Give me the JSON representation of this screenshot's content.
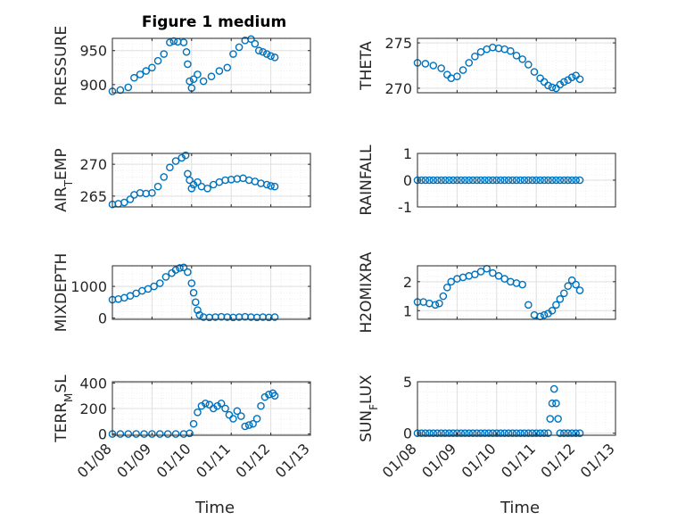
{
  "figure": {
    "title": "Figure 1 medium"
  },
  "colors": {
    "marker": "#0072BD",
    "grid_major": "#dfdfdf",
    "grid_minor": "#ececec",
    "axis": "#262626"
  },
  "x_axis": {
    "label": "Time",
    "ticks": [
      0,
      1,
      2,
      3,
      4,
      5
    ],
    "tick_labels": [
      "01/08",
      "01/09",
      "01/10",
      "01/11",
      "01/12",
      "01/13"
    ],
    "xlim": [
      0,
      5
    ]
  },
  "chart_data": [
    {
      "type": "scatter",
      "ylabel": "PRESSURE",
      "ylim": [
        888,
        968
      ],
      "yticks": [
        900,
        950
      ],
      "ytick_labels": [
        "900",
        "950"
      ],
      "grid": true,
      "x": [
        0,
        0.2,
        0.4,
        0.55,
        0.7,
        0.85,
        1.0,
        1.15,
        1.3,
        1.45,
        1.55,
        1.65,
        1.8,
        1.87,
        1.9,
        1.95,
        2.0,
        2.05,
        2.15,
        2.3,
        2.5,
        2.7,
        2.9,
        3.05,
        3.2,
        3.35,
        3.5,
        3.6,
        3.7,
        3.8,
        3.9,
        4.0,
        4.1
      ],
      "y": [
        890,
        892,
        896,
        910,
        915,
        920,
        925,
        935,
        945,
        962,
        964,
        963,
        962,
        948,
        930,
        905,
        895,
        908,
        915,
        905,
        912,
        920,
        925,
        945,
        955,
        965,
        967,
        960,
        950,
        948,
        945,
        942,
        940
      ]
    },
    {
      "type": "scatter",
      "ylabel": "THETA",
      "ylim": [
        269.5,
        275.5
      ],
      "yticks": [
        270,
        275
      ],
      "ytick_labels": [
        "270",
        "275"
      ],
      "grid": true,
      "x": [
        0,
        0.2,
        0.4,
        0.6,
        0.75,
        0.85,
        1.0,
        1.15,
        1.3,
        1.45,
        1.6,
        1.75,
        1.9,
        2.05,
        2.2,
        2.35,
        2.5,
        2.65,
        2.8,
        2.95,
        3.1,
        3.2,
        3.3,
        3.4,
        3.5,
        3.6,
        3.7,
        3.8,
        3.9,
        4.0,
        4.1
      ],
      "y": [
        272.8,
        272.7,
        272.5,
        272.2,
        271.5,
        271.1,
        271.3,
        272.0,
        272.8,
        273.5,
        274.0,
        274.3,
        274.5,
        274.4,
        274.3,
        274.1,
        273.6,
        273.2,
        272.6,
        271.8,
        271.1,
        270.7,
        270.3,
        270.1,
        270.0,
        270.4,
        270.7,
        270.9,
        271.2,
        271.4,
        271.0
      ]
    },
    {
      "type": "scatter",
      "ylabel": "AIR_TEMP",
      "ylabel_main": "AIR",
      "ylabel_sub": "T",
      "ylabel_rest": "EMP",
      "ylim": [
        263.3,
        271.7
      ],
      "yticks": [
        265,
        270
      ],
      "ytick_labels": [
        "265",
        "270"
      ],
      "grid": true,
      "x": [
        0,
        0.15,
        0.3,
        0.45,
        0.55,
        0.7,
        0.85,
        1.0,
        1.15,
        1.3,
        1.45,
        1.6,
        1.75,
        1.85,
        1.9,
        1.95,
        2.0,
        2.05,
        2.15,
        2.25,
        2.4,
        2.55,
        2.7,
        2.85,
        3.0,
        3.15,
        3.3,
        3.45,
        3.6,
        3.75,
        3.9,
        4.0,
        4.1
      ],
      "y": [
        263.7,
        263.8,
        264.0,
        264.5,
        265.2,
        265.5,
        265.4,
        265.5,
        266.5,
        268.0,
        269.5,
        270.5,
        271.0,
        271.4,
        268.5,
        267.5,
        266.2,
        266.8,
        267.2,
        266.5,
        266.2,
        266.8,
        267.2,
        267.5,
        267.6,
        267.7,
        267.8,
        267.5,
        267.3,
        267.0,
        266.8,
        266.6,
        266.5
      ]
    },
    {
      "type": "scatter",
      "ylabel": "RAINFALL",
      "ylim": [
        -1,
        1
      ],
      "yticks": [
        -1,
        0,
        1
      ],
      "ytick_labels": [
        "-1",
        "0",
        "1"
      ],
      "grid": true,
      "x": [
        0,
        0.1,
        0.2,
        0.3,
        0.4,
        0.5,
        0.6,
        0.7,
        0.8,
        0.9,
        1.0,
        1.1,
        1.2,
        1.3,
        1.4,
        1.5,
        1.6,
        1.7,
        1.8,
        1.9,
        2.0,
        2.1,
        2.2,
        2.3,
        2.4,
        2.5,
        2.6,
        2.7,
        2.8,
        2.9,
        3.0,
        3.1,
        3.2,
        3.3,
        3.4,
        3.5,
        3.6,
        3.7,
        3.8,
        3.9,
        4.0,
        4.1
      ],
      "y": [
        0,
        0,
        0,
        0,
        0,
        0,
        0,
        0,
        0,
        0,
        0,
        0,
        0,
        0,
        0,
        0,
        0,
        0,
        0,
        0,
        0,
        0,
        0,
        0,
        0,
        0,
        0,
        0,
        0,
        0,
        0,
        0,
        0,
        0,
        0,
        0,
        0,
        0,
        0,
        0,
        0,
        0
      ]
    },
    {
      "type": "scatter",
      "ylabel": "MIXDEPTH",
      "ylim": [
        -40,
        1650
      ],
      "yticks": [
        0,
        1000
      ],
      "ytick_labels": [
        "0",
        "1000"
      ],
      "grid": true,
      "x": [
        0,
        0.15,
        0.3,
        0.45,
        0.6,
        0.75,
        0.9,
        1.05,
        1.2,
        1.35,
        1.5,
        1.6,
        1.7,
        1.8,
        1.9,
        2.0,
        2.05,
        2.1,
        2.15,
        2.2,
        2.3,
        2.45,
        2.6,
        2.75,
        2.9,
        3.05,
        3.2,
        3.35,
        3.5,
        3.65,
        3.8,
        3.95,
        4.1
      ],
      "y": [
        580,
        600,
        640,
        700,
        780,
        860,
        920,
        1000,
        1100,
        1300,
        1420,
        1520,
        1580,
        1600,
        1450,
        1100,
        800,
        500,
        250,
        100,
        30,
        20,
        30,
        40,
        30,
        20,
        30,
        40,
        30,
        20,
        30,
        20,
        30
      ]
    },
    {
      "type": "scatter",
      "ylabel": "H2OMIXRA",
      "ylim": [
        0.7,
        2.55
      ],
      "yticks": [
        1,
        2
      ],
      "ytick_labels": [
        "1",
        "2"
      ],
      "grid": true,
      "x": [
        0,
        0.15,
        0.3,
        0.45,
        0.55,
        0.65,
        0.75,
        0.85,
        1.0,
        1.15,
        1.3,
        1.45,
        1.6,
        1.75,
        1.9,
        2.05,
        2.2,
        2.35,
        2.5,
        2.65,
        2.8,
        2.95,
        3.1,
        3.2,
        3.3,
        3.4,
        3.5,
        3.6,
        3.7,
        3.8,
        3.9,
        4.0,
        4.1
      ],
      "y": [
        1.3,
        1.3,
        1.25,
        1.2,
        1.25,
        1.5,
        1.8,
        2.0,
        2.1,
        2.15,
        2.2,
        2.25,
        2.35,
        2.45,
        2.3,
        2.2,
        2.1,
        2.0,
        1.95,
        1.9,
        1.2,
        0.85,
        0.8,
        0.85,
        0.9,
        1.0,
        1.2,
        1.4,
        1.6,
        1.85,
        2.05,
        1.9,
        1.7
      ]
    },
    {
      "type": "scatter",
      "ylabel": "TERR_MSL",
      "ylabel_main": "TERR",
      "ylabel_sub": "M",
      "ylabel_rest": "SL",
      "ylim": [
        -10,
        410
      ],
      "yticks": [
        0,
        200,
        400
      ],
      "ytick_labels": [
        "0",
        "200",
        "400"
      ],
      "grid": true,
      "x": [
        0,
        0.2,
        0.4,
        0.6,
        0.8,
        1.0,
        1.2,
        1.4,
        1.6,
        1.8,
        1.95,
        2.05,
        2.15,
        2.25,
        2.35,
        2.45,
        2.55,
        2.65,
        2.75,
        2.85,
        2.95,
        3.05,
        3.15,
        3.25,
        3.35,
        3.45,
        3.55,
        3.65,
        3.75,
        3.85,
        3.95,
        4.05,
        4.1
      ],
      "y": [
        0,
        0,
        0,
        0,
        0,
        0,
        0,
        0,
        0,
        0,
        5,
        80,
        170,
        220,
        240,
        230,
        200,
        220,
        240,
        200,
        150,
        120,
        180,
        140,
        60,
        70,
        80,
        120,
        220,
        290,
        310,
        320,
        300
      ]
    },
    {
      "type": "scatter",
      "ylabel": "SUN_FLUX",
      "ylabel_main": "SUN",
      "ylabel_sub": "F",
      "ylabel_rest": "LUX",
      "ylim": [
        -0.2,
        5
      ],
      "yticks": [
        0,
        5
      ],
      "ytick_labels": [
        "0",
        "5"
      ],
      "grid": true,
      "x": [
        0,
        0.1,
        0.2,
        0.3,
        0.4,
        0.5,
        0.6,
        0.7,
        0.8,
        0.9,
        1.0,
        1.1,
        1.2,
        1.3,
        1.4,
        1.5,
        1.6,
        1.7,
        1.8,
        1.9,
        2.0,
        2.1,
        2.2,
        2.3,
        2.4,
        2.5,
        2.6,
        2.7,
        2.8,
        2.9,
        3.0,
        3.1,
        3.2,
        3.3,
        3.35,
        3.4,
        3.45,
        3.5,
        3.55,
        3.6,
        3.7,
        3.8,
        3.9,
        4.0,
        4.1
      ],
      "y": [
        0,
        0,
        0,
        0,
        0,
        0,
        0,
        0,
        0,
        0,
        0,
        0,
        0,
        0,
        0,
        0,
        0,
        0,
        0,
        0,
        0,
        0,
        0,
        0,
        0,
        0,
        0,
        0,
        0,
        0,
        0,
        0,
        0,
        0,
        1.4,
        2.9,
        4.3,
        2.9,
        1.4,
        0,
        0,
        0,
        0,
        0,
        0
      ]
    }
  ]
}
